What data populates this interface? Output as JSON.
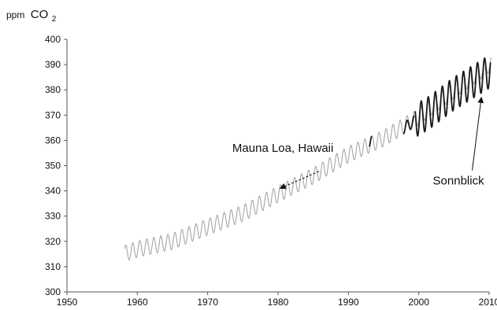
{
  "chart_data": {
    "type": "line",
    "ylabel": {
      "prefix": "ppm",
      "main": "CO",
      "subscript": "2"
    },
    "xlim": [
      1950,
      2010
    ],
    "ylim": [
      300,
      400
    ],
    "x_ticks": [
      1950,
      1960,
      1970,
      1980,
      1990,
      2000,
      2010
    ],
    "y_ticks": [
      300,
      310,
      320,
      330,
      340,
      350,
      360,
      370,
      380,
      390,
      400
    ],
    "grid": false,
    "legend": "none",
    "series": [
      {
        "name": "Mauna Loa, Hawaii",
        "color": "#a6a6a6",
        "x_range": [
          1958.2,
          2010.3
        ],
        "trend": [
          [
            1958,
            315.0
          ],
          [
            1960,
            316.9
          ],
          [
            1965,
            320.0
          ],
          [
            1970,
            325.7
          ],
          [
            1975,
            331.1
          ],
          [
            1980,
            338.7
          ],
          [
            1985,
            345.9
          ],
          [
            1990,
            354.4
          ],
          [
            1995,
            360.8
          ],
          [
            2000,
            369.4
          ],
          [
            2005,
            379.8
          ],
          [
            2010,
            389.9
          ]
        ],
        "seasonal_amplitude": 3.2
      },
      {
        "name": "Sonnblick",
        "color": "#1a1a1a",
        "segments": [
          {
            "x_range": [
              1993.0,
              1993.3
            ],
            "trend": [
              [
                1993.0,
                359.0
              ],
              [
                1993.3,
                359.3
              ]
            ],
            "seasonal_amplitude": 2.5
          },
          {
            "x_range": [
              1997.8,
              1999.4
            ],
            "trend": [
              [
                1997.8,
                364.8
              ],
              [
                1999.4,
                367.5
              ]
            ],
            "seasonal_amplitude": 2.2
          },
          {
            "x_range": [
              1999.5,
              2010.2
            ],
            "trend": [
              [
                1999.5,
                367.7
              ],
              [
                2001.5,
                371.0
              ],
              [
                2005,
                378.5
              ],
              [
                2010.2,
                387.5
              ]
            ],
            "seasonal_amplitude": 6.5
          }
        ]
      }
    ],
    "annotations": [
      {
        "text": "Mauna Loa, Hawaii",
        "text_at": [
          1973.5,
          355.5
        ],
        "arrow_to": [
          1980.3,
          341.0
        ]
      },
      {
        "text": "Sonnblick",
        "text_at": [
          2002.0,
          342.5
        ],
        "arrow_to": [
          2008.9,
          377.0
        ]
      }
    ]
  }
}
